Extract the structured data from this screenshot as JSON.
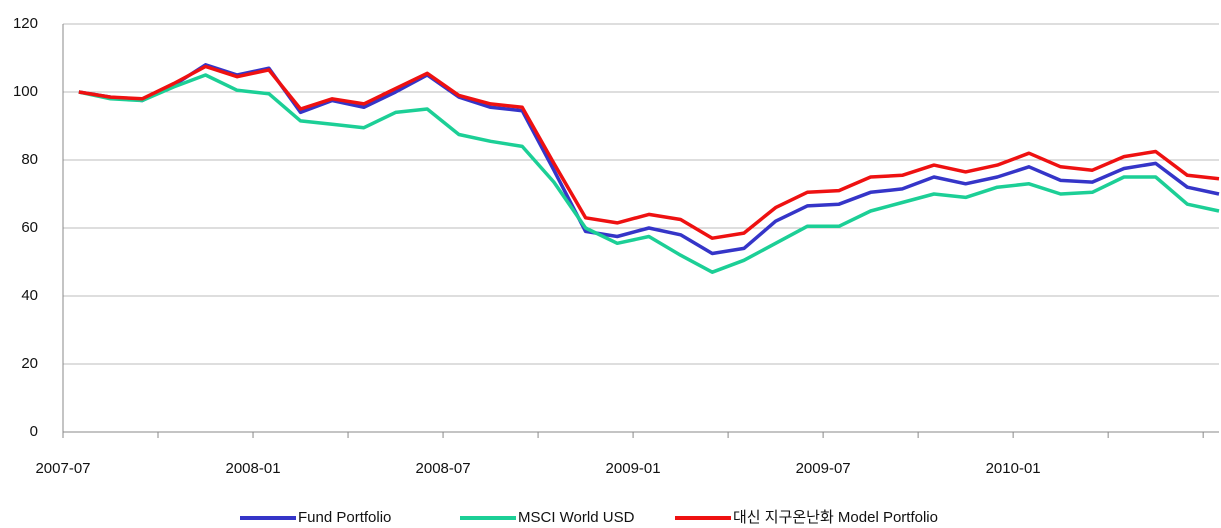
{
  "chart_data": {
    "type": "line",
    "categories": [
      "2007-07",
      null,
      null,
      null,
      null,
      null,
      "2008-01",
      null,
      null,
      null,
      null,
      null,
      "2008-07",
      null,
      null,
      null,
      null,
      null,
      "2009-01",
      null,
      null,
      null,
      null,
      null,
      "2009-07",
      null,
      null,
      null,
      null,
      null,
      "2010-01",
      null,
      null,
      null,
      null,
      null,
      null
    ],
    "series": [
      {
        "name": "Fund Portfolio",
        "color": "#3535c8",
        "values": [
          100,
          98.5,
          97.5,
          102,
          108,
          105,
          107,
          94,
          97.5,
          95.5,
          100,
          105,
          98.5,
          95.5,
          94.5,
          77,
          59,
          57.5,
          60,
          58,
          52.5,
          54,
          62,
          66.5,
          67,
          70.5,
          71.5,
          75,
          73,
          75,
          78,
          74,
          73.5,
          77.5,
          79,
          72,
          70
        ]
      },
      {
        "name": "MSCI World USD",
        "color": "#1ccf96",
        "values": [
          100,
          98,
          97.5,
          101.5,
          105,
          100.5,
          99.5,
          91.5,
          90.5,
          89.5,
          94,
          95,
          87.5,
          85.5,
          84,
          73.5,
          60,
          55.5,
          57.5,
          52,
          47,
          50.5,
          55.5,
          60.5,
          60.5,
          65,
          67.5,
          70,
          69,
          72,
          73,
          70,
          70.5,
          75,
          75,
          67,
          65
        ]
      },
      {
        "name": "대신 지구온난화 Model Portfolio",
        "color": "#ee1111",
        "values": [
          100,
          98.5,
          98,
          102.5,
          107.5,
          104.5,
          106.5,
          95,
          98,
          96.5,
          101,
          105.5,
          99,
          96.5,
          95.5,
          79,
          63,
          61.5,
          64,
          62.5,
          57,
          58.5,
          66,
          70.5,
          71,
          75,
          75.5,
          78.5,
          76.5,
          78.5,
          82,
          78,
          77,
          81,
          82.5,
          75.5,
          74.5
        ]
      }
    ],
    "ylim": [
      0,
      120
    ],
    "yticks": [
      0,
      20,
      40,
      60,
      80,
      100,
      120
    ],
    "grid": true,
    "legend": "bottom"
  }
}
